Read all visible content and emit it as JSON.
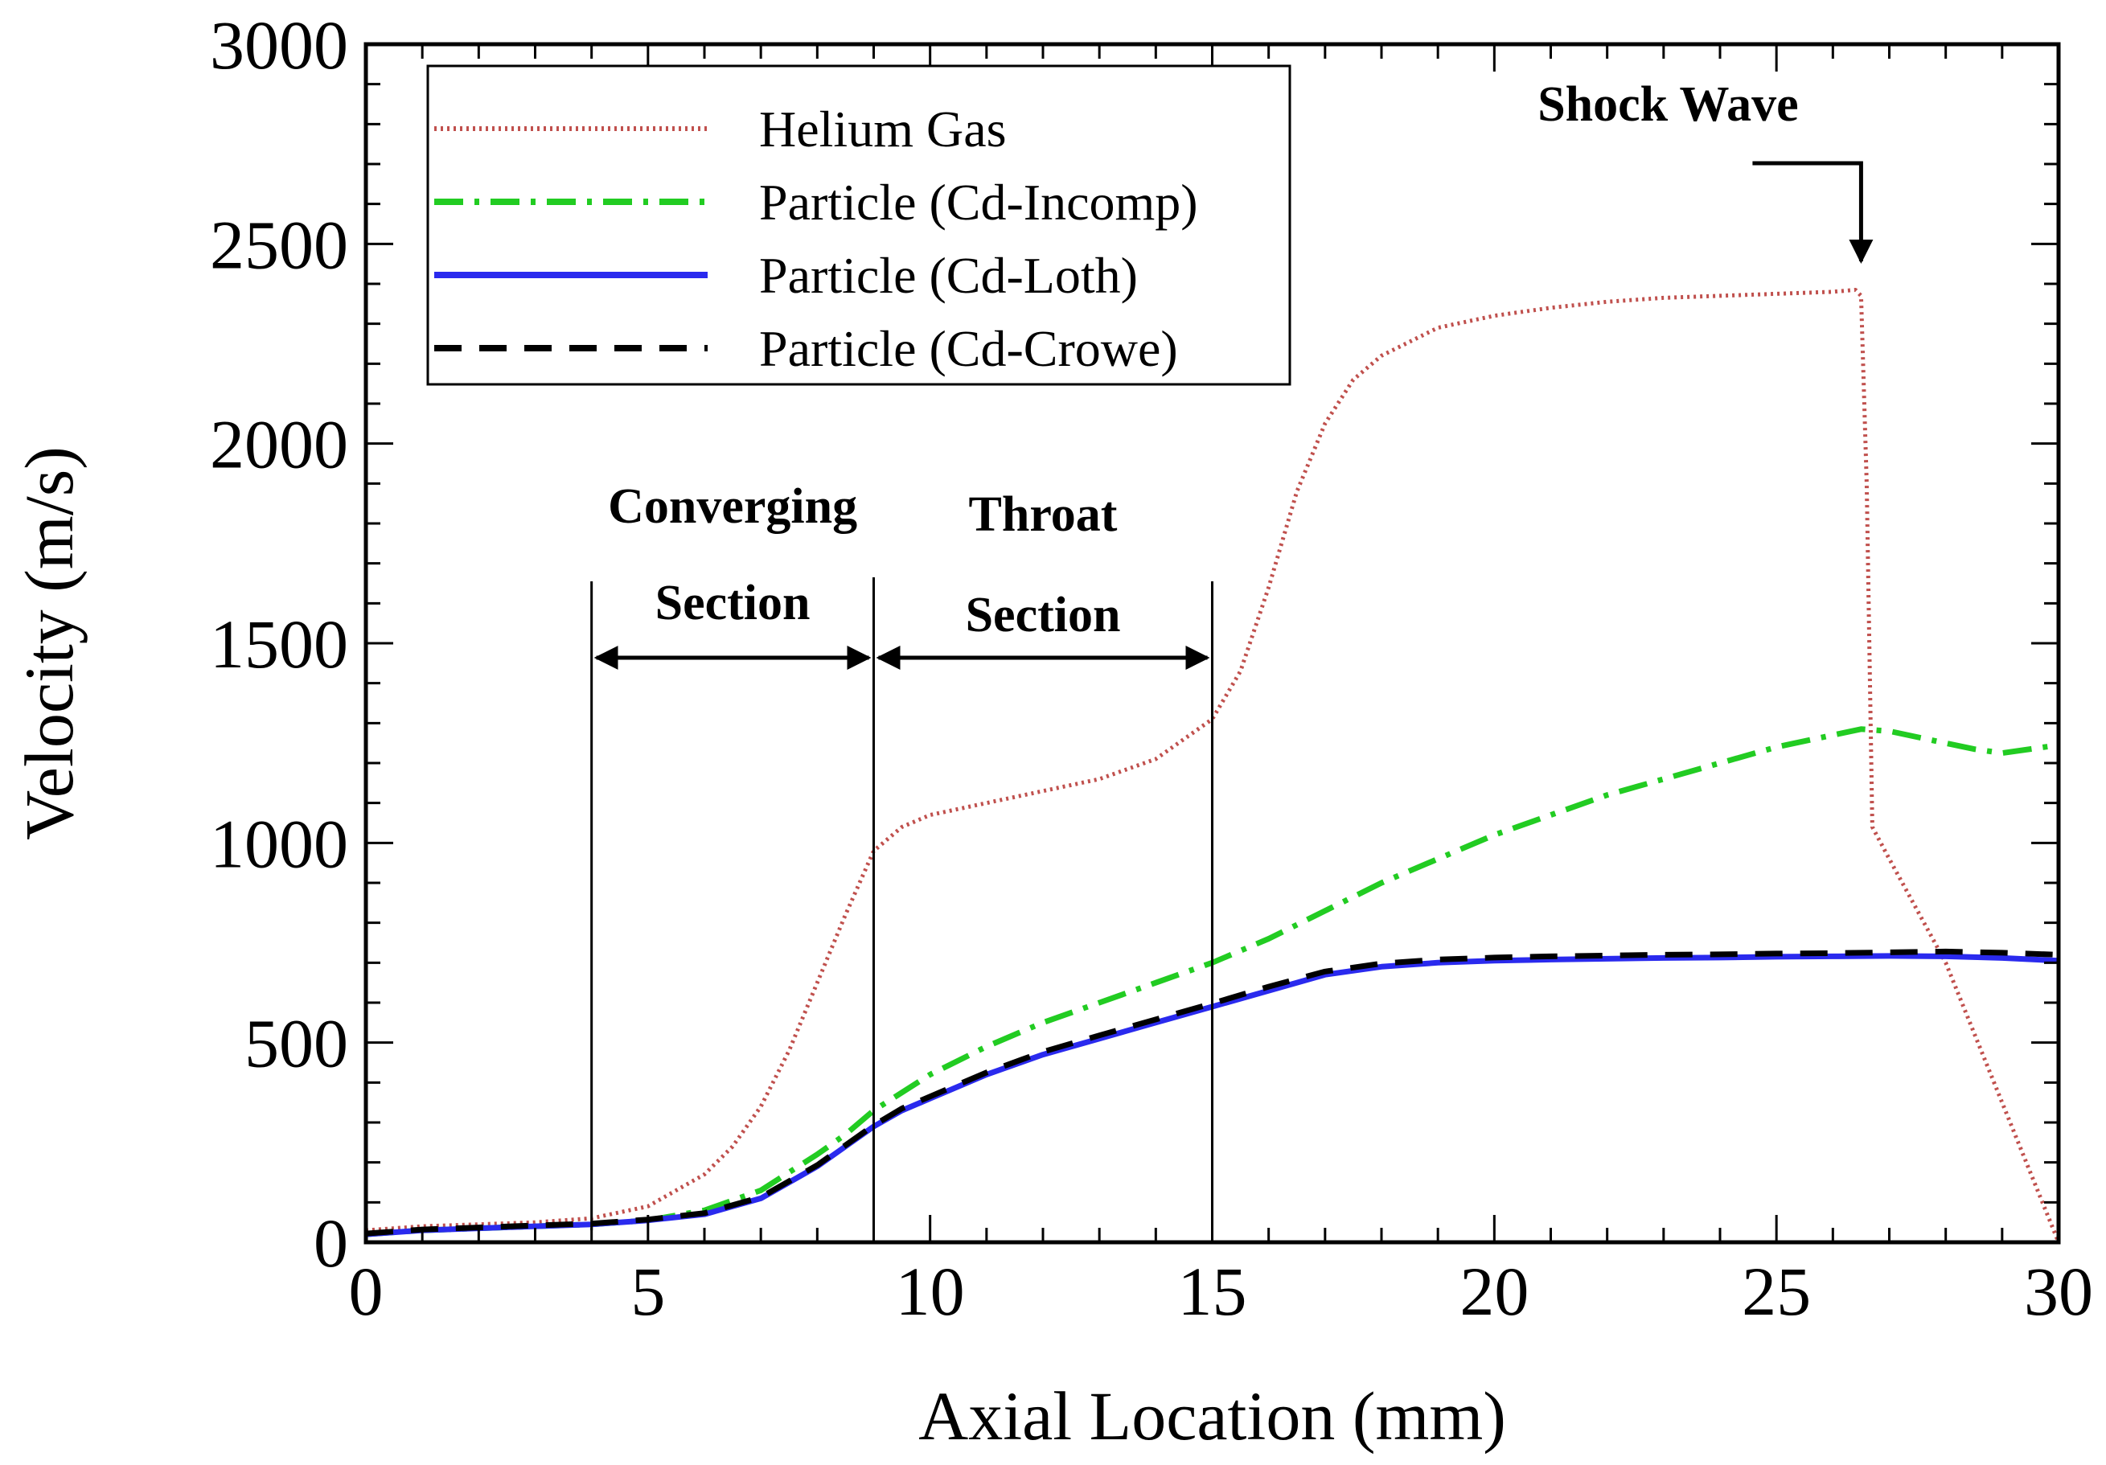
{
  "chart_data": {
    "type": "line",
    "title": "",
    "xlabel": "Axial Location (mm)",
    "ylabel": "Velocity (m/s)",
    "xlim": [
      0,
      30
    ],
    "ylim": [
      0,
      3000
    ],
    "xticks": [
      0,
      5,
      10,
      15,
      20,
      25,
      30
    ],
    "yticks": [
      0,
      500,
      1000,
      1500,
      2000,
      2500,
      3000
    ],
    "x_minor_step": 1,
    "y_minor_step": 100,
    "grid": false,
    "legend_position": "top-left",
    "series": [
      {
        "name": "Helium Gas",
        "color": "#c0504d",
        "style": "dotted",
        "x": [
          0,
          1,
          2,
          3,
          4,
          5,
          6,
          6.5,
          7,
          7.5,
          8,
          8.5,
          9,
          9.5,
          10,
          11,
          12,
          13,
          14,
          15,
          15.5,
          16,
          16.5,
          17,
          17.5,
          18,
          19,
          20,
          21,
          22,
          23,
          24,
          25,
          26,
          26.4,
          26.5,
          26.6,
          26.7,
          27,
          28,
          29,
          30
        ],
        "y": [
          30,
          40,
          45,
          50,
          60,
          90,
          170,
          240,
          340,
          480,
          650,
          820,
          980,
          1040,
          1070,
          1100,
          1130,
          1160,
          1210,
          1310,
          1430,
          1640,
          1880,
          2050,
          2160,
          2220,
          2290,
          2320,
          2340,
          2355,
          2365,
          2370,
          2375,
          2380,
          2385,
          2370,
          1900,
          1040,
          960,
          700,
          350,
          0
        ]
      },
      {
        "name": "Particle (Cd-Incomp)",
        "color": "#22cc22",
        "style": "dashdot",
        "x": [
          0,
          1,
          2,
          3,
          4,
          5,
          6,
          7,
          8,
          8.5,
          9,
          10,
          11,
          12,
          13,
          14,
          15,
          16,
          17,
          18,
          19,
          20,
          21,
          22,
          23,
          24,
          25,
          26,
          26.5,
          27,
          28,
          28.5,
          29,
          29.5,
          30
        ],
        "y": [
          20,
          30,
          35,
          40,
          45,
          55,
          80,
          130,
          220,
          270,
          330,
          420,
          490,
          550,
          600,
          650,
          700,
          760,
          830,
          900,
          960,
          1020,
          1070,
          1120,
          1160,
          1200,
          1240,
          1270,
          1285,
          1280,
          1250,
          1235,
          1225,
          1235,
          1245
        ]
      },
      {
        "name": "Particle (Cd-Loth)",
        "color": "#2a2aee",
        "style": "solid",
        "x": [
          0,
          1,
          2,
          3,
          4,
          5,
          6,
          7,
          8,
          8.5,
          9,
          9.5,
          10,
          11,
          12,
          13,
          14,
          15,
          16,
          17,
          18,
          19,
          20,
          21,
          22,
          23,
          24,
          25,
          26,
          27,
          28,
          29,
          30
        ],
        "y": [
          20,
          30,
          35,
          40,
          45,
          55,
          70,
          110,
          190,
          240,
          290,
          330,
          360,
          420,
          470,
          510,
          550,
          590,
          630,
          670,
          690,
          700,
          705,
          708,
          710,
          712,
          713,
          715,
          716,
          717,
          716,
          712,
          705
        ]
      },
      {
        "name": "Particle (Cd-Crowe)",
        "color": "#000000",
        "style": "dashed",
        "x": [
          0,
          1,
          2,
          3,
          4,
          5,
          6,
          7,
          8,
          8.5,
          9,
          9.5,
          10,
          11,
          12,
          13,
          14,
          15,
          16,
          17,
          18,
          19,
          20,
          21,
          22,
          23,
          24,
          25,
          26,
          27,
          28,
          29,
          30
        ],
        "y": [
          22,
          32,
          37,
          42,
          47,
          57,
          73,
          113,
          193,
          243,
          293,
          335,
          365,
          425,
          477,
          518,
          558,
          598,
          640,
          678,
          698,
          708,
          713,
          716,
          718,
          720,
          721,
          723,
          724,
          726,
          728,
          725,
          720
        ]
      }
    ],
    "annotations": {
      "shock_wave": "Shock Wave",
      "shock_x": 26.5,
      "converging_line1": "Converging",
      "converging_line2": "Section",
      "throat_line1": "Throat",
      "throat_line2": "Section",
      "section_bounds": [
        4,
        9,
        15
      ]
    }
  }
}
